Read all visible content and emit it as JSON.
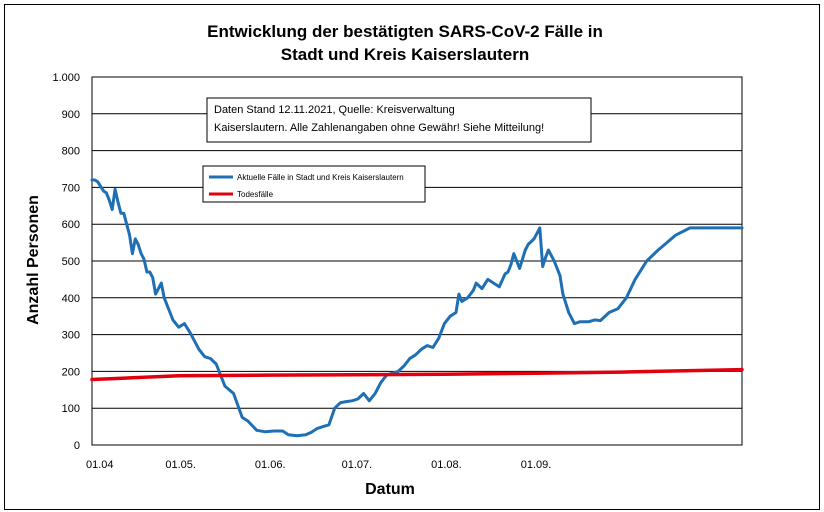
{
  "chart_data": {
    "type": "line",
    "title_lines": [
      "Entwicklung der bestätigten SARS-CoV-2 Fälle in",
      "Stadt und Kreis Kaiserslautern"
    ],
    "xlabel": "Datum",
    "ylabel": "Anzahl Personen",
    "ylim": [
      0,
      1000
    ],
    "yticks": [
      0,
      100,
      200,
      300,
      400,
      500,
      600,
      700,
      800,
      900,
      1000
    ],
    "ytick_labels": [
      "0",
      "100",
      "200",
      "300",
      "400",
      "500",
      "600",
      "700",
      "800",
      "900",
      "1.000"
    ],
    "xlim": [
      "2021-04-01",
      "2021-11-12"
    ],
    "xticks": [
      "2021-04-01",
      "2021-05-01",
      "2021-06-01",
      "2021-07-01",
      "2021-08-01",
      "2021-09-01"
    ],
    "xtick_labels": [
      "01.04",
      "01.05.",
      "01.06.",
      "01.07.",
      "01.08.",
      "01.09."
    ],
    "grid": "horizontal",
    "legend_position": "top-left",
    "annotation_lines": [
      "Daten Stand 12.11.2021, Quelle: Kreisverwaltung",
      "Kaiserslautern. Alle Zahlenangaben ohne Gewähr! Siehe Mitteilung!"
    ],
    "series": [
      {
        "name": "Aktuelle Fälle in Stadt und Kreis Kaiserslautern",
        "color": "#1F6FB5",
        "x": [
          "2021-04-01",
          "2021-04-02",
          "2021-04-03",
          "2021-04-05",
          "2021-04-06",
          "2021-04-07",
          "2021-04-08",
          "2021-04-09",
          "2021-04-10",
          "2021-04-11",
          "2021-04-12",
          "2021-04-13",
          "2021-04-14",
          "2021-04-15",
          "2021-04-16",
          "2021-04-17",
          "2021-04-18",
          "2021-04-19",
          "2021-04-20",
          "2021-04-21",
          "2021-04-22",
          "2021-04-23",
          "2021-04-25",
          "2021-04-26",
          "2021-04-27",
          "2021-04-28",
          "2021-04-29",
          "2021-04-30",
          "2021-05-01",
          "2021-05-03",
          "2021-05-05",
          "2021-05-08",
          "2021-05-10",
          "2021-05-12",
          "2021-05-14",
          "2021-05-17",
          "2021-05-20",
          "2021-05-23",
          "2021-05-25",
          "2021-05-28",
          "2021-05-31",
          "2021-06-03",
          "2021-06-06",
          "2021-06-08",
          "2021-06-11",
          "2021-06-14",
          "2021-06-16",
          "2021-06-18",
          "2021-06-20",
          "2021-06-22",
          "2021-06-24",
          "2021-06-26",
          "2021-06-28",
          "2021-06-30",
          "2021-07-02",
          "2021-07-04",
          "2021-07-06",
          "2021-07-08",
          "2021-07-10",
          "2021-07-12",
          "2021-07-14",
          "2021-07-16",
          "2021-07-18",
          "2021-07-20",
          "2021-07-22",
          "2021-07-24",
          "2021-07-26",
          "2021-07-28",
          "2021-07-30",
          "2021-08-01",
          "2021-08-03",
          "2021-08-05",
          "2021-08-06",
          "2021-08-07",
          "2021-08-09",
          "2021-08-11",
          "2021-08-12",
          "2021-08-14",
          "2021-08-16",
          "2021-08-18",
          "2021-08-20",
          "2021-08-22",
          "2021-08-23",
          "2021-08-24",
          "2021-08-25",
          "2021-08-27",
          "2021-08-29",
          "2021-08-30",
          "2021-09-01",
          "2021-09-03",
          "2021-09-04",
          "2021-09-05",
          "2021-09-06",
          "2021-09-08",
          "2021-09-10",
          "2021-09-11",
          "2021-09-13",
          "2021-09-15",
          "2021-09-17",
          "2021-09-20",
          "2021-09-22",
          "2021-09-24",
          "2021-09-27",
          "2021-09-30",
          "2021-10-03",
          "2021-10-06",
          "2021-10-10",
          "2021-10-14",
          "2021-10-17",
          "2021-10-20",
          "2021-10-25",
          "2021-10-30",
          "2021-11-05",
          "2021-11-10",
          "2021-11-12"
        ],
        "values": [
          720,
          720,
          715,
          690,
          685,
          665,
          640,
          695,
          660,
          630,
          630,
          600,
          570,
          520,
          560,
          545,
          520,
          505,
          470,
          470,
          455,
          410,
          440,
          400,
          380,
          360,
          340,
          330,
          320,
          330,
          305,
          260,
          240,
          235,
          220,
          160,
          140,
          75,
          65,
          40,
          36,
          38,
          38,
          28,
          25,
          28,
          35,
          45,
          50,
          55,
          100,
          115,
          118,
          120,
          125,
          140,
          120,
          140,
          170,
          190,
          195,
          200,
          215,
          235,
          245,
          260,
          270,
          265,
          290,
          330,
          350,
          360,
          410,
          390,
          400,
          420,
          440,
          425,
          450,
          440,
          430,
          465,
          470,
          490,
          520,
          480,
          530,
          545,
          560,
          590,
          485,
          510,
          530,
          500,
          460,
          410,
          360,
          330,
          335,
          335,
          340,
          338,
          360,
          370,
          400,
          450,
          500,
          530,
          550,
          570,
          590,
          590,
          590,
          590,
          590
        ]
      },
      {
        "name": "Todesfälle",
        "color": "#E0000E",
        "x": [
          "2021-04-01",
          "2021-05-01",
          "2021-06-01",
          "2021-07-01",
          "2021-08-01",
          "2021-09-01",
          "2021-10-01",
          "2021-11-12"
        ],
        "values": [
          178,
          188,
          190,
          191,
          192,
          195,
          198,
          205
        ]
      }
    ]
  }
}
